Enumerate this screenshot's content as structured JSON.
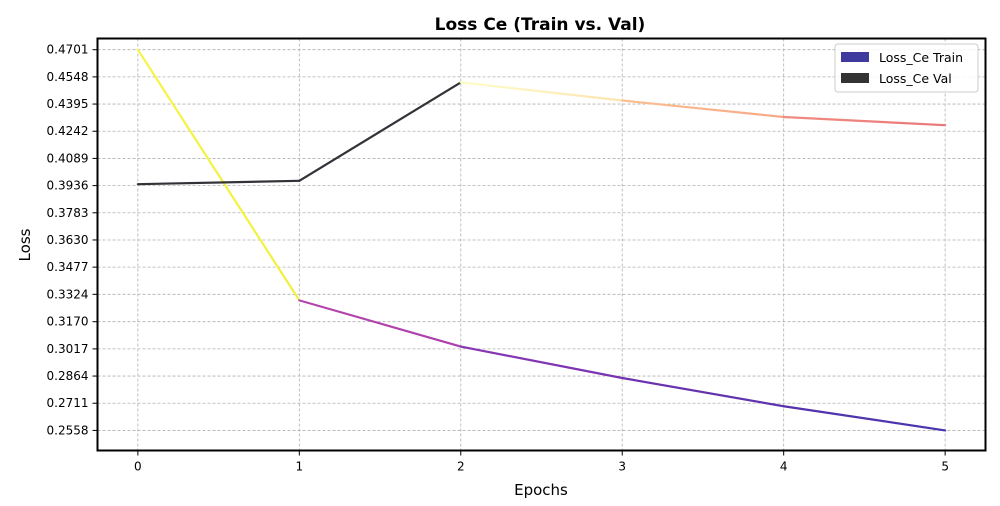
{
  "chart_data": {
    "type": "line",
    "title": "Loss Ce (Train vs. Val)",
    "xlabel": "Epochs",
    "ylabel": "Loss",
    "x": [
      0,
      1,
      2,
      3,
      4,
      5
    ],
    "xticks": [
      "0",
      "1",
      "2",
      "3",
      "4",
      "5"
    ],
    "xlim": [
      -0.25,
      5.25
    ],
    "ylim": [
      0.2445,
      0.4764
    ],
    "yticks": [
      "0.2558",
      "0.2711",
      "0.2864",
      "0.3017",
      "0.3170",
      "0.3324",
      "0.3477",
      "0.3630",
      "0.3783",
      "0.3936",
      "0.4089",
      "0.4242",
      "0.4395",
      "0.4548",
      "0.4701"
    ],
    "grid": true,
    "legend_position": "top-right",
    "series": [
      {
        "name": "Loss_Ce Train",
        "legend_color": "#3f3a9e",
        "values": [
          0.4701,
          0.329,
          0.303,
          0.2853,
          0.2694,
          0.2558
        ],
        "segment_colors": [
          [
            "#f5f545",
            "#f0f040"
          ],
          [
            "#b546ad",
            "#ab3fae"
          ],
          [
            "#8a37b4",
            "#7833b2"
          ],
          [
            "#6d32b0",
            "#5c34ad"
          ],
          [
            "#5533ab",
            "#4a35ae"
          ]
        ]
      },
      {
        "name": "Loss_Ce Val",
        "legend_color": "#333333",
        "values": [
          0.3944,
          0.3963,
          0.4517,
          0.4415,
          0.4322,
          0.4276
        ],
        "segment_colors": [
          [
            "#333238",
            "#333238"
          ],
          [
            "#333238",
            "#333238"
          ],
          [
            "#fdfdc6",
            "#fde3b0"
          ],
          [
            "#fbc08f",
            "#f7a888"
          ],
          [
            "#f08c80",
            "#ea767a"
          ]
        ]
      }
    ]
  }
}
